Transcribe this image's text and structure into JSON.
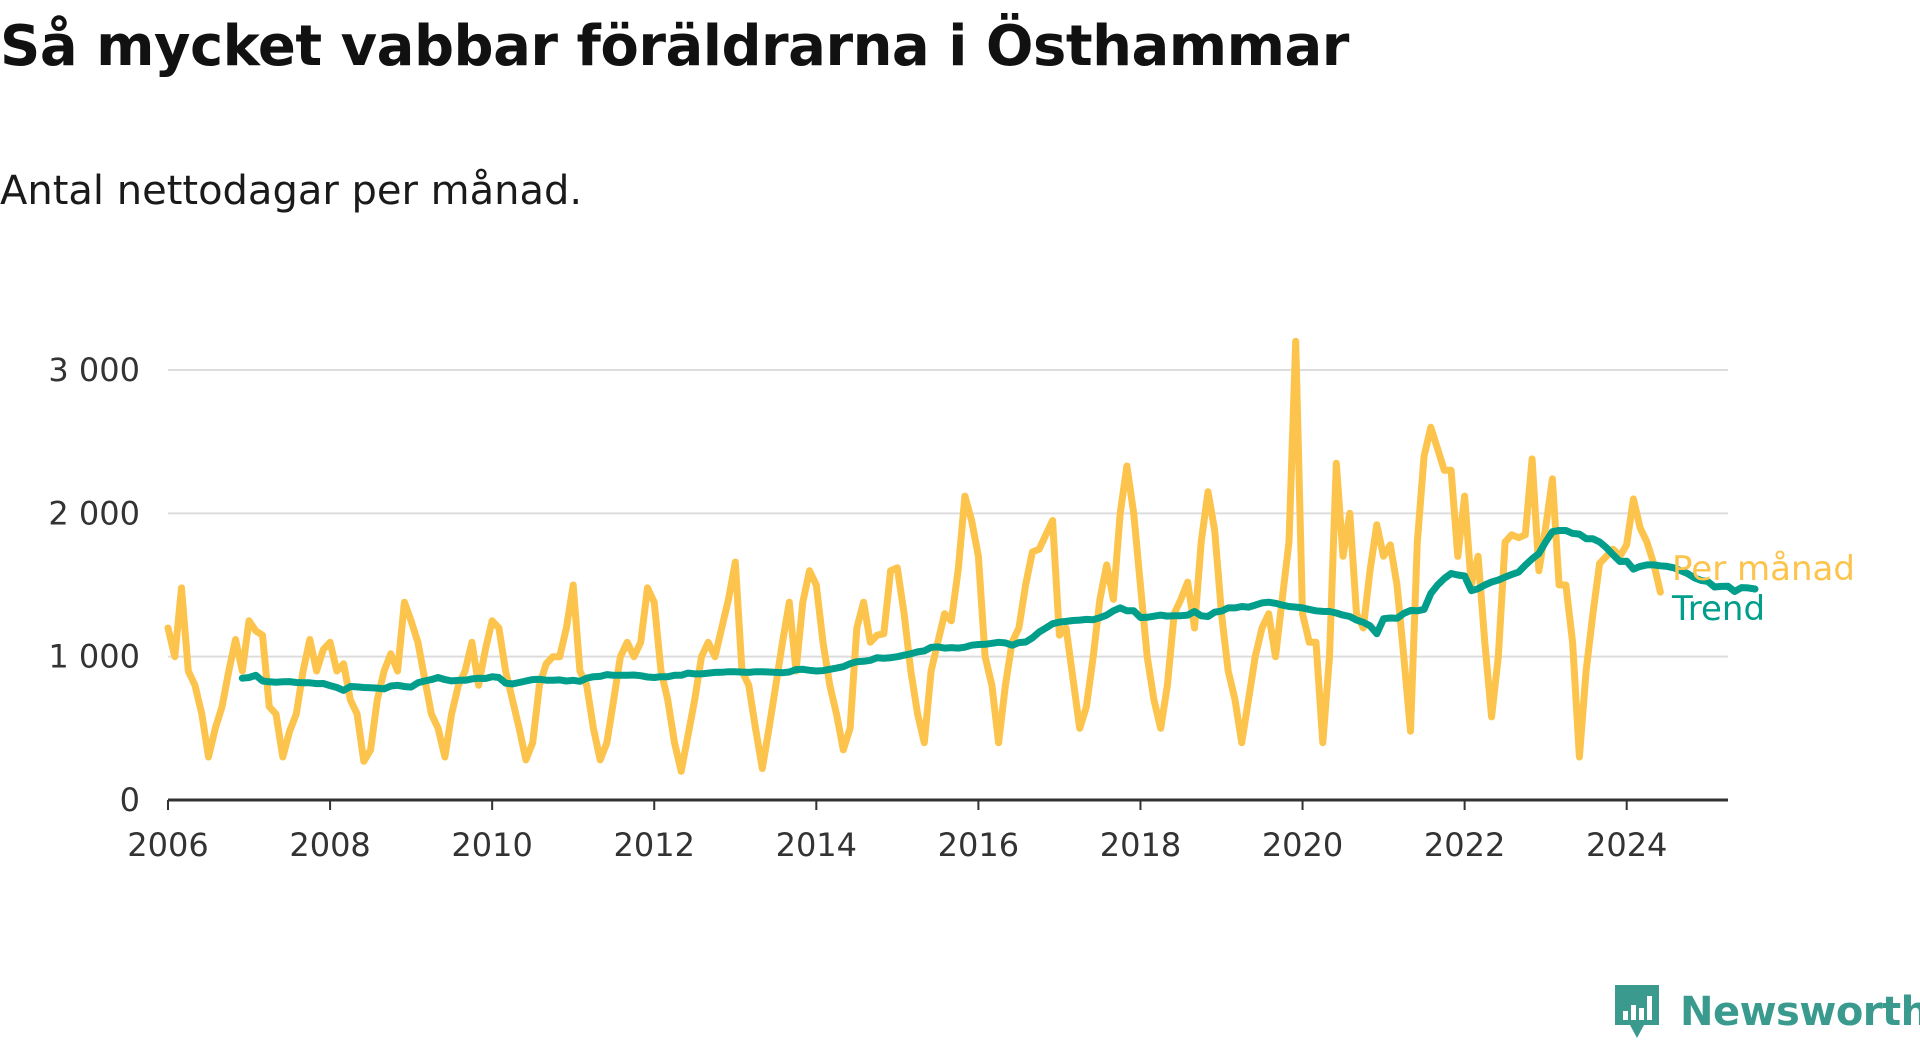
{
  "title": "Så mycket vabbar föräldrarna i Östhammar",
  "subtitle": "Antal nettodagar per månad.",
  "brand": "Newsworthy",
  "colors": {
    "per_month": "#fcc44d",
    "trend": "#009e8b",
    "grid": "#dddddd",
    "axis": "#333333",
    "text": "#333333",
    "brand": "#3a9a8e"
  },
  "chart_data": {
    "type": "line",
    "title": "Så mycket vabbar föräldrarna i Östhammar",
    "subtitle": "Antal nettodagar per månad.",
    "xlabel": "",
    "ylabel": "",
    "xlim": [
      2006,
      2025.25
    ],
    "ylim": [
      0,
      3000
    ],
    "y_ticks": [
      0,
      1000,
      2000,
      3000
    ],
    "y_tick_labels": [
      "0",
      "1 000",
      "2 000",
      "3 000"
    ],
    "x_ticks": [
      2006,
      2008,
      2010,
      2012,
      2014,
      2016,
      2018,
      2020,
      2022,
      2024
    ],
    "x_tick_labels": [
      "2006",
      "2008",
      "2010",
      "2012",
      "2014",
      "2016",
      "2018",
      "2020",
      "2022",
      "2024"
    ],
    "grid": true,
    "legend": "inline-right",
    "series": [
      {
        "name": "Per månad",
        "x_start": 2006.0,
        "step": 0.08333,
        "values": [
          1200,
          1000,
          1480,
          900,
          800,
          600,
          300,
          500,
          650,
          900,
          1120,
          900,
          1250,
          1180,
          1150,
          650,
          600,
          300,
          480,
          600,
          900,
          1120,
          900,
          1050,
          1100,
          900,
          950,
          700,
          600,
          270,
          350,
          700,
          900,
          1020,
          900,
          1380,
          1250,
          1100,
          850,
          600,
          500,
          300,
          600,
          800,
          900,
          1100,
          800,
          1050,
          1250,
          1200,
          900,
          700,
          500,
          280,
          400,
          800,
          950,
          1000,
          1000,
          1200,
          1500,
          900,
          800,
          500,
          280,
          400,
          700,
          1000,
          1100,
          1000,
          1100,
          1480,
          1380,
          900,
          700,
          400,
          200,
          450,
          700,
          1000,
          1100,
          1000,
          1200,
          1400,
          1660,
          900,
          800,
          500,
          220,
          500,
          800,
          1100,
          1380,
          900,
          1380,
          1600,
          1500,
          1100,
          800,
          600,
          350,
          500,
          1200,
          1380,
          1100,
          1150,
          1160,
          1600,
          1620,
          1300,
          900,
          600,
          400,
          900,
          1100,
          1300,
          1250,
          1600,
          2120,
          1950,
          1700,
          1000,
          800,
          400,
          800,
          1100,
          1200,
          1500,
          1730,
          1750,
          1850,
          1950,
          1150,
          1200,
          850,
          500,
          650,
          1000,
          1400,
          1640,
          1400,
          2000,
          2330,
          2000,
          1500,
          1000,
          700,
          500,
          800,
          1300,
          1400,
          1520,
          1200,
          1800,
          2150,
          1880,
          1300,
          900,
          700,
          400,
          700,
          1000,
          1200,
          1300,
          1000,
          1400,
          1800,
          3200,
          1300,
          1100,
          1100,
          400,
          1000,
          2350,
          1700,
          2000,
          1300,
          1200,
          1600,
          1920,
          1700,
          1780,
          1500,
          1000,
          480,
          1800,
          2400,
          2600,
          2450,
          2300,
          2300,
          1700,
          2120,
          1500,
          1700,
          1100,
          580,
          1000,
          1800,
          1850,
          1830,
          1850,
          2380,
          1600,
          1900,
          2240,
          1500,
          1500,
          1100,
          300,
          900,
          1300,
          1650,
          1700,
          1750,
          1700,
          1780,
          2100,
          1900,
          1800,
          1650,
          1450
        ]
      },
      {
        "name": "Trend",
        "x_start": 2006.917,
        "step": 0.08333,
        "values": [
          850,
          855,
          870,
          830,
          825,
          822,
          825,
          826,
          820,
          818,
          818,
          812,
          813,
          798,
          785,
          765,
          792,
          789,
          785,
          783,
          781,
          775,
          795,
          800,
          792,
          788,
          818,
          830,
          840,
          855,
          840,
          831,
          835,
          835,
          845,
          850,
          848,
          860,
          855,
          815,
          810,
          820,
          830,
          840,
          842,
          836,
          835,
          838,
          830,
          835,
          828,
          850,
          860,
          862,
          875,
          870,
          870,
          871,
          872,
          867,
          858,
          855,
          860,
          860,
          870,
          870,
          885,
          880,
          880,
          885,
          890,
          891,
          895,
          895,
          892,
          890,
          895,
          895,
          893,
          890,
          888,
          893,
          910,
          912,
          905,
          900,
          903,
          912,
          920,
          930,
          951,
          965,
          968,
          975,
          993,
          989,
          993,
          1000,
          1010,
          1020,
          1033,
          1040,
          1065,
          1068,
          1060,
          1063,
          1060,
          1066,
          1080,
          1085,
          1086,
          1093,
          1100,
          1096,
          1080,
          1098,
          1102,
          1131,
          1172,
          1200,
          1230,
          1241,
          1246,
          1252,
          1255,
          1260,
          1258,
          1272,
          1290,
          1320,
          1340,
          1320,
          1320,
          1273,
          1275,
          1282,
          1290,
          1283,
          1285,
          1286,
          1290,
          1315,
          1285,
          1280,
          1310,
          1318,
          1340,
          1340,
          1350,
          1346,
          1360,
          1375,
          1380,
          1372,
          1360,
          1350,
          1346,
          1340,
          1330,
          1320,
          1316,
          1315,
          1305,
          1290,
          1280,
          1255,
          1240,
          1215,
          1160,
          1265,
          1270,
          1268,
          1302,
          1322,
          1320,
          1330,
          1440,
          1500,
          1545,
          1580,
          1570,
          1563,
          1460,
          1474,
          1500,
          1521,
          1535,
          1555,
          1574,
          1590,
          1639,
          1682,
          1720,
          1800,
          1872,
          1880,
          1880,
          1860,
          1855,
          1823,
          1822,
          1800,
          1760,
          1710,
          1664,
          1666,
          1611,
          1630,
          1640,
          1640,
          1634,
          1630,
          1620,
          1600,
          1580,
          1551,
          1532,
          1525,
          1486,
          1490,
          1491,
          1455,
          1482,
          1480,
          1472
        ]
      }
    ]
  }
}
